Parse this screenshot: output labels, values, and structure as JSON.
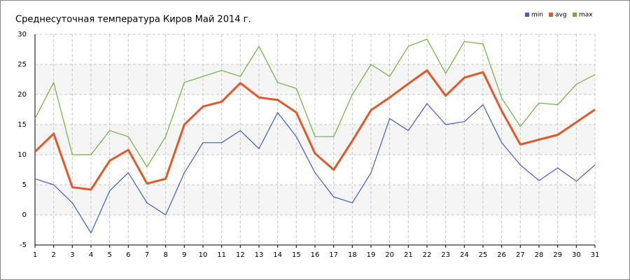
{
  "chart_data": {
    "type": "line",
    "title": "Среднесуточная температура Киров  Май 2014 г.",
    "x": [
      1,
      2,
      3,
      4,
      5,
      6,
      7,
      8,
      9,
      10,
      11,
      12,
      13,
      14,
      15,
      16,
      17,
      18,
      19,
      20,
      21,
      22,
      23,
      24,
      25,
      26,
      27,
      28,
      29,
      30,
      31
    ],
    "xlim": [
      1,
      31
    ],
    "series": [
      {
        "name": "min",
        "color": "#3a5fcd",
        "values": [
          6,
          5,
          2,
          -3,
          4,
          7,
          2,
          0,
          7,
          12,
          12,
          14,
          11,
          17,
          13,
          7,
          3,
          2,
          7,
          16,
          14,
          18.5,
          15,
          15.5,
          18.3,
          12,
          8.3,
          5.7,
          7.8,
          5.6,
          8.3
        ]
      },
      {
        "name": "avg",
        "color": "#e0592a",
        "values": [
          10.5,
          13.5,
          4.6,
          4.2,
          9,
          10.8,
          5.2,
          6,
          15,
          18,
          18.8,
          21.9,
          19.5,
          19.1,
          17,
          10.2,
          7.5,
          12.3,
          17.4,
          19.5,
          21.8,
          24,
          19.8,
          22.8,
          23.7,
          17.3,
          11.7,
          12.5,
          13.3,
          15.4,
          17.5
        ]
      },
      {
        "name": "max",
        "color": "#6ab23a",
        "values": [
          16,
          22,
          10,
          10,
          14,
          13,
          8,
          13,
          22,
          23,
          24,
          23,
          28,
          22,
          21,
          13,
          13,
          20,
          25,
          23,
          28,
          29.2,
          23.5,
          28.8,
          28.4,
          19.4,
          14.7,
          18.6,
          18.3,
          21.7,
          23.3
        ]
      }
    ],
    "ylim": [
      -5,
      30
    ],
    "yticks": [
      -5,
      0,
      5,
      10,
      15,
      20,
      25,
      30
    ],
    "grid": true,
    "legend": "top-right"
  }
}
